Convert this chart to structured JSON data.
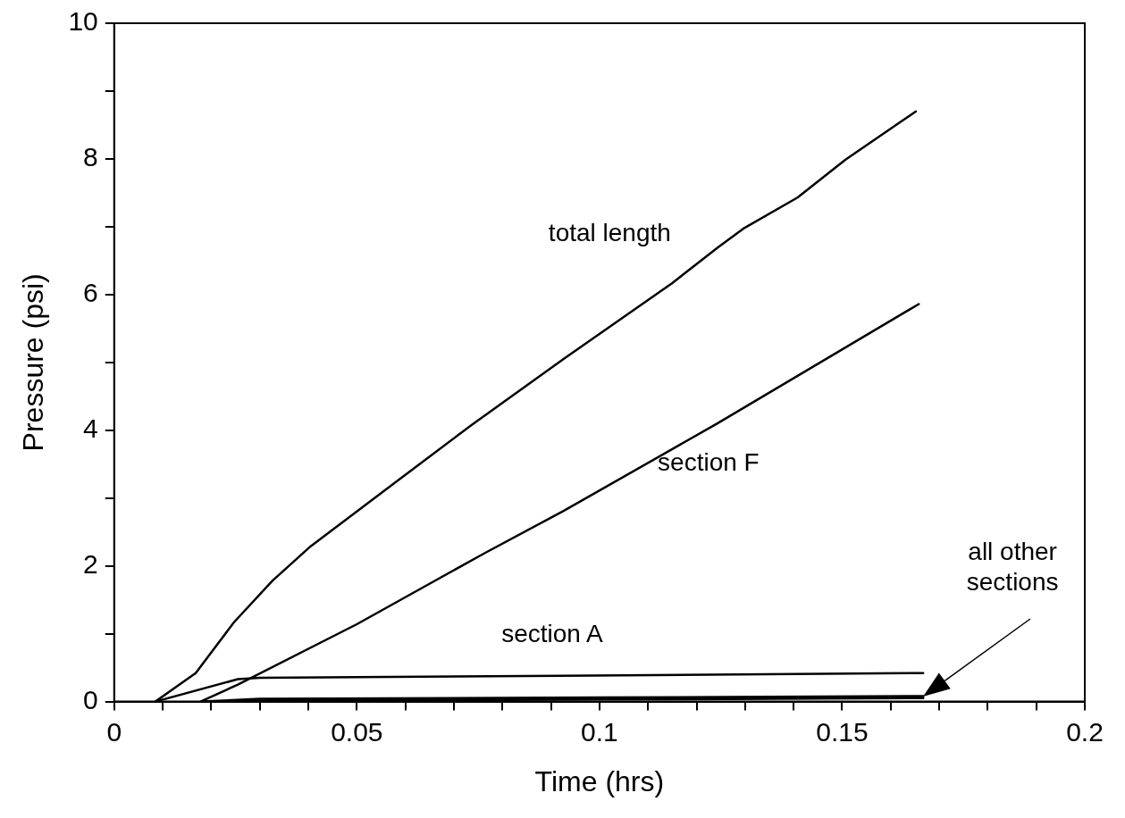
{
  "chart_data": {
    "type": "line",
    "xlabel": "Time (hrs)",
    "ylabel": "Pressure (psi)",
    "xlim": [
      0,
      0.2
    ],
    "xticks": [
      0,
      {
        "value": 0.01,
        "label": null
      },
      {
        "value": 0.02,
        "label": null
      },
      {
        "value": 0.03,
        "label": null
      },
      {
        "value": 0.04,
        "label": null
      },
      0.05,
      {
        "value": 0.06,
        "label": null
      },
      {
        "value": 0.07,
        "label": null
      },
      {
        "value": 0.08,
        "label": null
      },
      {
        "value": 0.09,
        "label": null
      },
      0.1,
      {
        "value": 0.11,
        "label": null
      },
      {
        "value": 0.12,
        "label": null
      },
      {
        "value": 0.13,
        "label": null
      },
      {
        "value": 0.14,
        "label": null
      },
      0.15,
      {
        "value": 0.16,
        "label": null
      },
      {
        "value": 0.17,
        "label": null
      },
      {
        "value": 0.18,
        "label": null
      },
      {
        "value": 0.19,
        "label": null
      },
      0.2
    ],
    "ylim": [
      0,
      10
    ],
    "yticks": [
      0,
      {
        "value": 1,
        "label": null
      },
      2,
      {
        "value": 3,
        "label": null
      },
      4,
      {
        "value": 5,
        "label": null
      },
      6,
      {
        "value": 7,
        "label": null
      },
      8,
      {
        "value": 9,
        "label": null
      },
      10
    ],
    "marker": "none",
    "series": [
      {
        "name": "total length",
        "color": "#000000",
        "x": [
          0.0085,
          0.0168,
          0.0247,
          0.0326,
          0.0405,
          0.057,
          0.0735,
          0.0926,
          0.115,
          0.1243,
          0.1296,
          0.1408,
          0.1507,
          0.1652
        ],
        "values": [
          0,
          0.42,
          1.17,
          1.78,
          2.29,
          3.18,
          4.07,
          5.05,
          6.17,
          6.69,
          6.97,
          7.43,
          7.99,
          8.7
        ]
      },
      {
        "name": "section F",
        "color": "#000000",
        "x": [
          0.0178,
          0.0255,
          0.05,
          0.0764,
          0.0926,
          0.1243,
          0.1658
        ],
        "values": [
          0,
          0.25,
          1.14,
          2.19,
          2.81,
          4.1,
          5.86
        ]
      },
      {
        "name": "section A",
        "color": "#000000",
        "x": [
          0.0085,
          0.0255,
          0.03,
          0.0921,
          0.1667
        ],
        "values": [
          0,
          0.33,
          0.35,
          0.38,
          0.42
        ]
      },
      {
        "color": "#000000",
        "x": [
          0.018,
          0.03,
          0.1,
          0.1667
        ],
        "values": [
          0,
          0.04,
          0.06,
          0.08
        ]
      },
      {
        "color": "#000000",
        "x": [
          0.019,
          0.035,
          0.1,
          0.1667
        ],
        "values": [
          0,
          0.02,
          0.04,
          0.06
        ]
      },
      {
        "color": "#000000",
        "x": [
          0.02,
          0.04,
          0.1,
          0.1667
        ],
        "values": [
          0,
          0.01,
          0.03,
          0.05
        ]
      }
    ],
    "annotations": [
      "all other sections"
    ]
  }
}
